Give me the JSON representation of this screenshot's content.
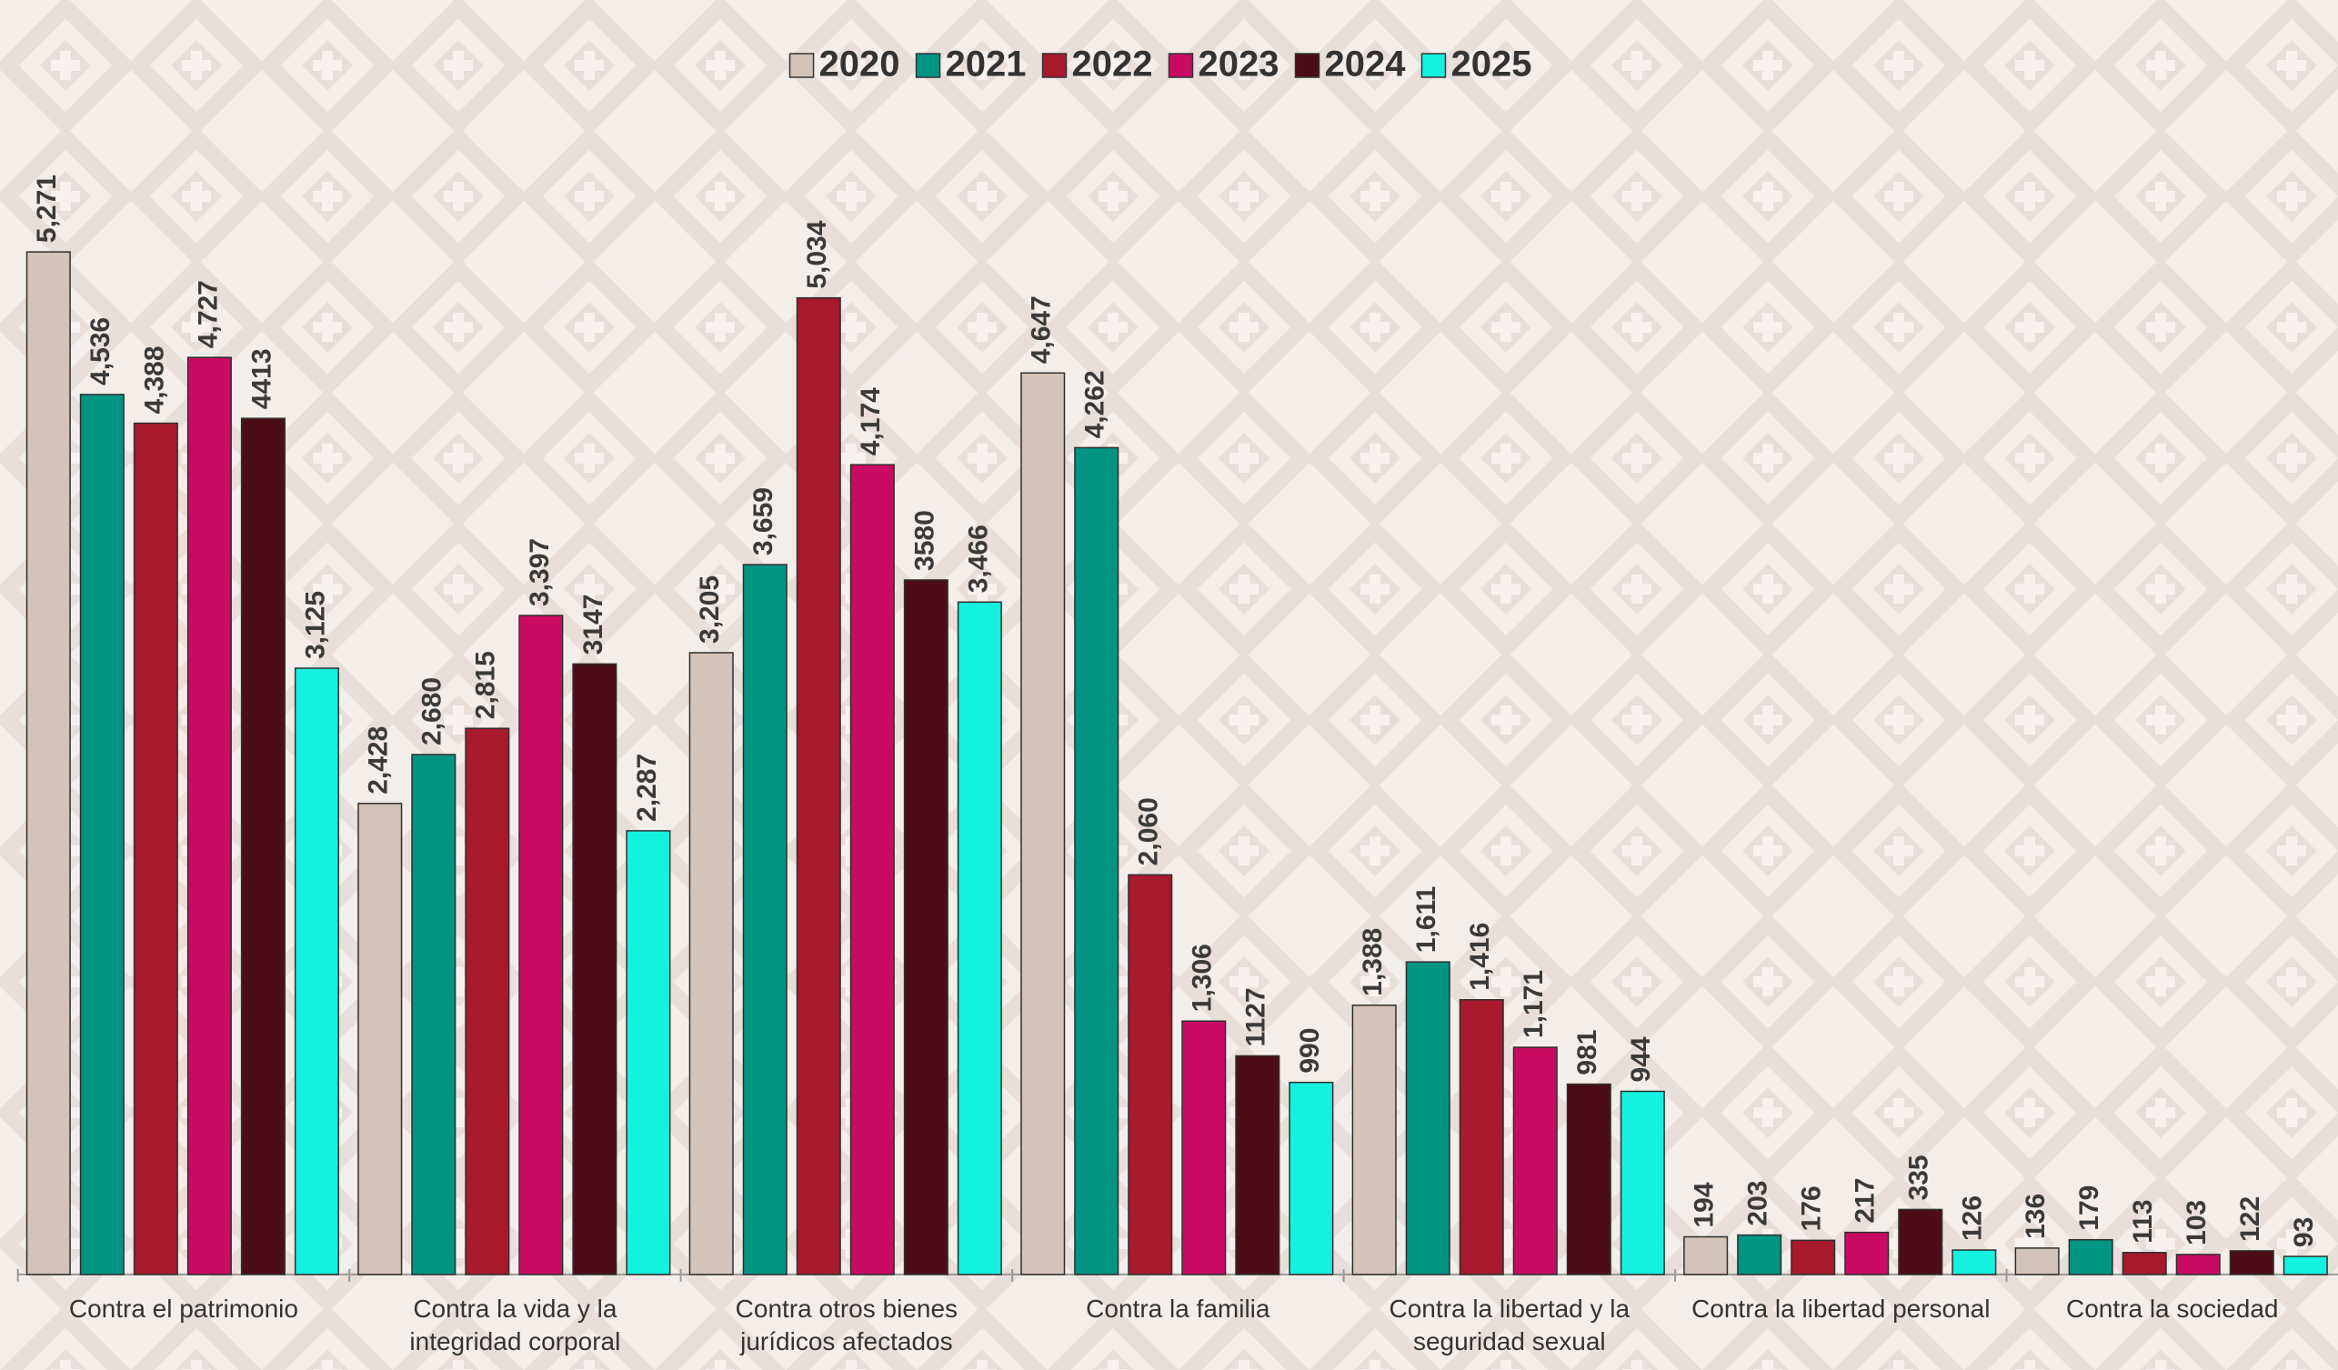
{
  "chart_data": {
    "type": "bar",
    "categories": [
      "Contra el patrimonio",
      "Contra la vida y la integridad corporal",
      "Contra otros bienes jurídicos afectados",
      "Contra la familia",
      "Contra la libertad y la seguridad sexual",
      "Contra la libertad personal",
      "Contra la sociedad"
    ],
    "series": [
      {
        "name": "2020",
        "color": "#d4c3b8",
        "values": [
          5271,
          2428,
          3205,
          4647,
          1388,
          194,
          136
        ],
        "value_labels": [
          "5,271",
          "2,428",
          "3,205",
          "4,647",
          "1,388",
          "194",
          "136"
        ]
      },
      {
        "name": "2021",
        "color": "#009483",
        "values": [
          4536,
          2680,
          3659,
          4262,
          1611,
          203,
          179
        ],
        "value_labels": [
          "4,536",
          "2,680",
          "3,659",
          "4,262",
          "1,611",
          "203",
          "179"
        ]
      },
      {
        "name": "2022",
        "color": "#a8192e",
        "values": [
          4388,
          2815,
          5034,
          2060,
          1416,
          176,
          113
        ],
        "value_labels": [
          "4,388",
          "2,815",
          "5,034",
          "2,060",
          "1,416",
          "176",
          "113"
        ]
      },
      {
        "name": "2023",
        "color": "#c90b62",
        "values": [
          4727,
          3397,
          4174,
          1306,
          1171,
          217,
          103
        ],
        "value_labels": [
          "4,727",
          "3,397",
          "4,174",
          "1,306",
          "1,171",
          "217",
          "103"
        ]
      },
      {
        "name": "2024",
        "color": "#4d0d18",
        "values": [
          4413,
          3147,
          3580,
          1127,
          981,
          335,
          122
        ],
        "value_labels": [
          "4413",
          "3147",
          "3580",
          "1127",
          "981",
          "335",
          "122"
        ]
      },
      {
        "name": "2025",
        "color": "#14f2df",
        "values": [
          3125,
          2287,
          3466,
          990,
          944,
          126,
          93
        ],
        "value_labels": [
          "3,125",
          "2,287",
          "3,466",
          "990",
          "944",
          "126",
          "93"
        ]
      }
    ],
    "legend": "top"
  }
}
